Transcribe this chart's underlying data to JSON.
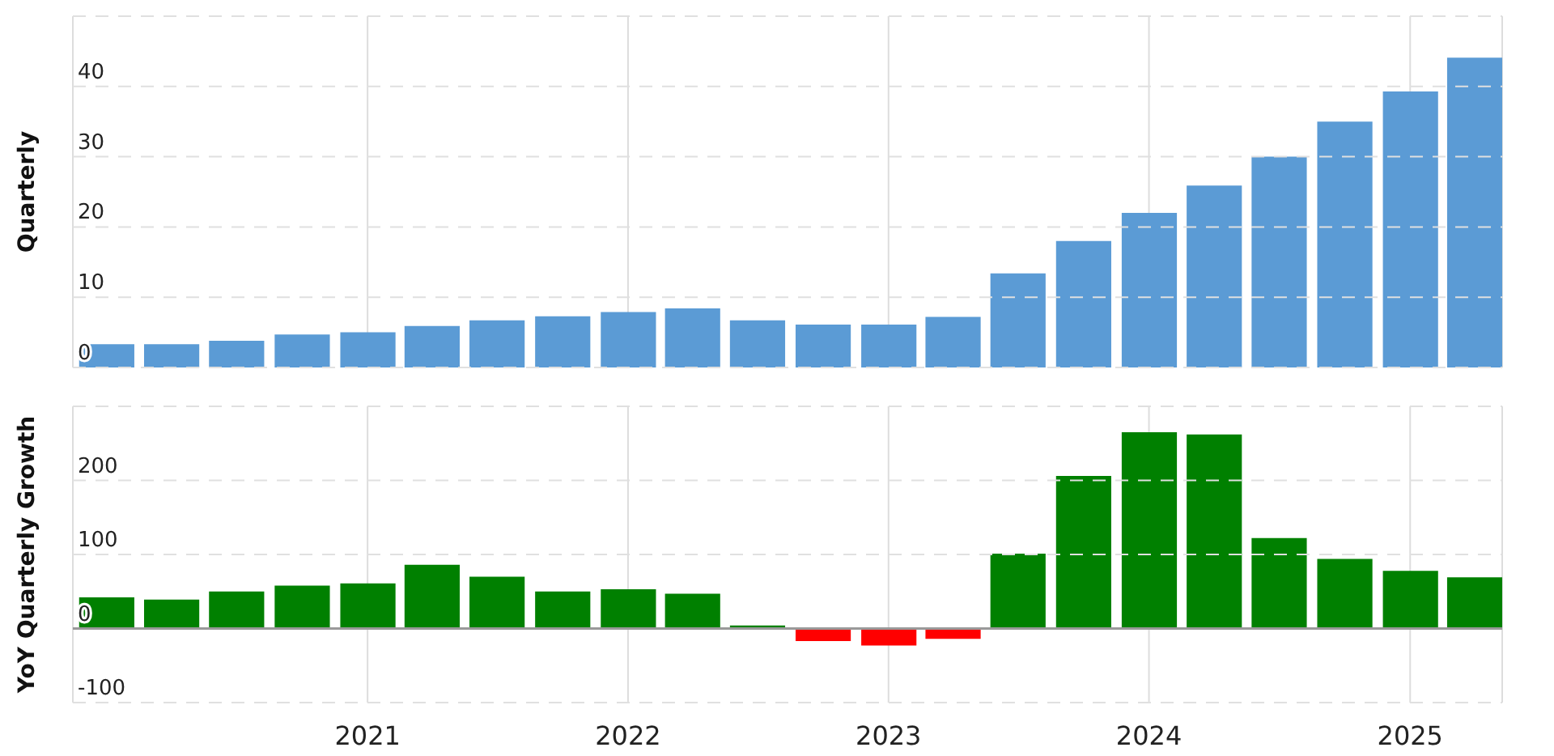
{
  "chart_data": [
    {
      "type": "bar",
      "ylabel": "Quarterly",
      "x": [
        "2020-01",
        "2020-04",
        "2020-07",
        "2020-10",
        "2021-01",
        "2021-04",
        "2021-07",
        "2021-10",
        "2022-01",
        "2022-04",
        "2022-07",
        "2022-10",
        "2023-01",
        "2023-04",
        "2023-07",
        "2023-10",
        "2024-01",
        "2024-04",
        "2024-07",
        "2024-10",
        "2025-01",
        "2025-04"
      ],
      "values": [
        3.3,
        3.3,
        3.8,
        4.7,
        5.0,
        5.9,
        6.7,
        7.3,
        7.9,
        8.4,
        6.7,
        6.1,
        6.1,
        7.2,
        13.4,
        18.0,
        22.0,
        25.9,
        30.0,
        35.0,
        39.3,
        44.1
      ],
      "color": "#5b9bd5",
      "xlim": [
        "2019-11-15",
        "2025-05-10"
      ],
      "xticks": [
        "2021",
        "2022",
        "2023",
        "2024",
        "2025"
      ],
      "ylim": [
        0,
        50
      ],
      "yticks": [
        0,
        10,
        20,
        30,
        40,
        {
          "value": 50,
          "label": null
        }
      ],
      "grid": true,
      "tick_labels": "y"
    },
    {
      "type": "bar",
      "ylabel": "YoY Quarterly Growth",
      "x": [
        "2020-01",
        "2020-04",
        "2020-07",
        "2020-10",
        "2021-01",
        "2021-04",
        "2021-07",
        "2021-10",
        "2022-01",
        "2022-04",
        "2022-07",
        "2022-10",
        "2023-01",
        "2023-04",
        "2023-07",
        "2023-10",
        "2024-01",
        "2024-04",
        "2024-07",
        "2024-10",
        "2025-01",
        "2025-04"
      ],
      "values": [
        42,
        39,
        50,
        58,
        61,
        86,
        70,
        50,
        53,
        47,
        4,
        -17,
        -23,
        -14,
        101,
        206,
        265,
        262,
        122,
        94,
        78,
        69
      ],
      "colors": [
        "#008000",
        "#008000",
        "#008000",
        "#008000",
        "#008000",
        "#008000",
        "#008000",
        "#008000",
        "#008000",
        "#008000",
        "#008000",
        "#ff0000",
        "#ff0000",
        "#ff0000",
        "#008000",
        "#008000",
        "#008000",
        "#008000",
        "#008000",
        "#008000",
        "#008000",
        "#008000"
      ],
      "xlim": [
        "2019-11-15",
        "2025-05-10"
      ],
      "xticks": [
        "2021",
        "2022",
        "2023",
        "2024",
        "2025"
      ],
      "ylim": [
        -100,
        300
      ],
      "yticks": [
        -100,
        0,
        100,
        200,
        {
          "value": 300,
          "label": null
        }
      ],
      "grid": true,
      "ref_lines": [
        {
          "axis": "y",
          "value": 0,
          "color": "#999999"
        }
      ]
    }
  ]
}
